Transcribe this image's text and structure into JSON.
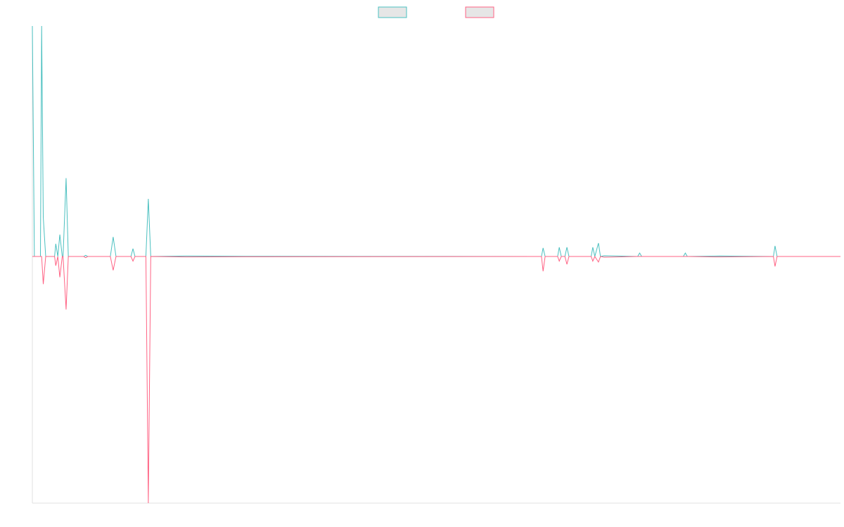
{
  "chart_data": {
    "type": "line",
    "legend": "top",
    "x": [
      0,
      0.5,
      2.0,
      2.3,
      2.7,
      3.3,
      5.5,
      5.8,
      6.3,
      6.8,
      7.4,
      7.6,
      8.35,
      8.9,
      12.7,
      13.2,
      13.7,
      19.3,
      20.0,
      20.7,
      24.4,
      24.9,
      25.4,
      28.1,
      28.7,
      29.3,
      38.1,
      52.7,
      126.0,
      126.4,
      126.9,
      130.0,
      130.4,
      130.9,
      131.8,
      132.3,
      132.8,
      138.3,
      138.7,
      139.2,
      140.1,
      140.6,
      141.5,
      149.8,
      150.3,
      150.8,
      161.1,
      161.6,
      162.1,
      170.1,
      183.4,
      183.8,
      184.3,
      200
    ],
    "series": [
      {
        "color": "#4bc0c0",
        "values": [
          100,
          0,
          0,
          100,
          17,
          0,
          0,
          5.5,
          0,
          9.5,
          0,
          0,
          34,
          0,
          0,
          0.5,
          0,
          0,
          8.5,
          0,
          0,
          3.4,
          0,
          0,
          25,
          0,
          0.2,
          0.1,
          0,
          3.7,
          0,
          0,
          4,
          0,
          0,
          4,
          0,
          0,
          4,
          0,
          5.8,
          0,
          0.3,
          0,
          1.5,
          0,
          0,
          1.5,
          0,
          0.2,
          0,
          4.6,
          0,
          0
        ]
      },
      {
        "color": "#ff6384",
        "values": [
          0,
          0,
          0,
          0,
          -12,
          0,
          0,
          -4,
          0,
          -9,
          0,
          0,
          -23,
          0,
          0,
          -0.5,
          0,
          0,
          -6,
          0,
          0,
          -2,
          0,
          0,
          -107,
          0,
          -0.2,
          -0.1,
          0,
          -6.4,
          0,
          0,
          -2,
          0,
          0,
          -3.4,
          0,
          0,
          -2,
          0,
          -2.4,
          0,
          -0.3,
          0,
          0,
          0,
          0,
          0,
          0,
          -0.2,
          0,
          -4.3,
          0,
          0
        ]
      }
    ],
    "xlim": [
      0,
      200
    ],
    "ylim": [
      -107,
      100
    ]
  }
}
